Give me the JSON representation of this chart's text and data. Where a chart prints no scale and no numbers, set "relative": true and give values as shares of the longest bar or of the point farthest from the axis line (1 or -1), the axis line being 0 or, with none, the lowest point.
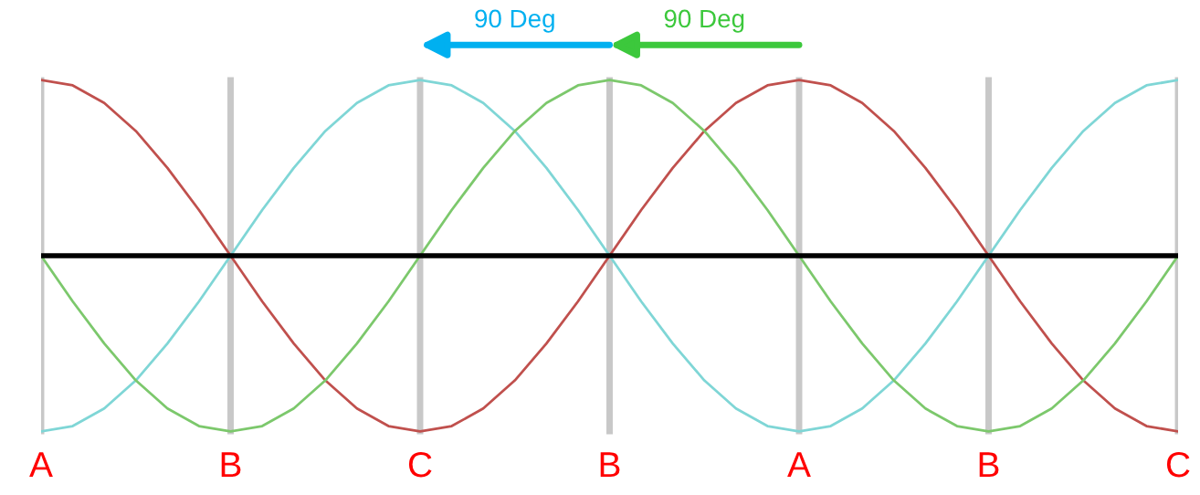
{
  "chart_data": {
    "type": "line",
    "relative": true,
    "categories": [
      "A",
      null,
      null,
      null,
      null,
      null,
      "B",
      null,
      null,
      null,
      null,
      null,
      "C",
      null,
      null,
      null,
      null,
      null,
      "B",
      null,
      null,
      null,
      null,
      null,
      "A",
      null,
      null,
      null,
      null,
      null,
      "B",
      null,
      null,
      null,
      null,
      null,
      "C"
    ],
    "grid": "x",
    "marker": "none",
    "line_style": "solid",
    "series": [
      {
        "color": "#c0504d",
        "values": [
          1,
          0.97,
          0.87,
          0.71,
          0.5,
          0.26,
          0,
          -0.26,
          -0.5,
          -0.71,
          -0.87,
          -0.97,
          -1,
          -0.97,
          -0.87,
          -0.71,
          -0.5,
          -0.26,
          0,
          0.26,
          0.5,
          0.71,
          0.87,
          0.97,
          1,
          0.97,
          0.87,
          0.71,
          0.5,
          0.26,
          0,
          -0.26,
          -0.5,
          -0.71,
          -0.87,
          -0.97,
          -1
        ]
      },
      {
        "color": "#7fd6d6",
        "values": [
          -1,
          -0.97,
          -0.87,
          -0.71,
          -0.5,
          -0.26,
          0,
          0.26,
          0.5,
          0.71,
          0.87,
          0.97,
          1,
          0.97,
          0.87,
          0.71,
          0.5,
          0.26,
          0,
          -0.26,
          -0.5,
          -0.71,
          -0.87,
          -0.97,
          -1,
          -0.97,
          -0.87,
          -0.71,
          -0.5,
          -0.26,
          0,
          0.26,
          0.5,
          0.71,
          0.87,
          0.97,
          1
        ]
      },
      {
        "color": "#7cc86c",
        "values": [
          0,
          -0.26,
          -0.5,
          -0.71,
          -0.87,
          -0.97,
          -1,
          -0.97,
          -0.87,
          -0.71,
          -0.5,
          -0.26,
          0,
          0.26,
          0.5,
          0.71,
          0.87,
          0.97,
          1,
          0.97,
          0.87,
          0.71,
          0.5,
          0.26,
          0,
          -0.26,
          -0.5,
          -0.71,
          -0.87,
          -0.97,
          -1,
          -0.97,
          -0.87,
          -0.71,
          -0.5,
          -0.26,
          0
        ]
      }
    ],
    "ref_lines": [
      {
        "axis": "y",
        "value": 0,
        "color": "#000000"
      }
    ],
    "annotations": [
      "90 Deg",
      "90 Deg"
    ]
  }
}
